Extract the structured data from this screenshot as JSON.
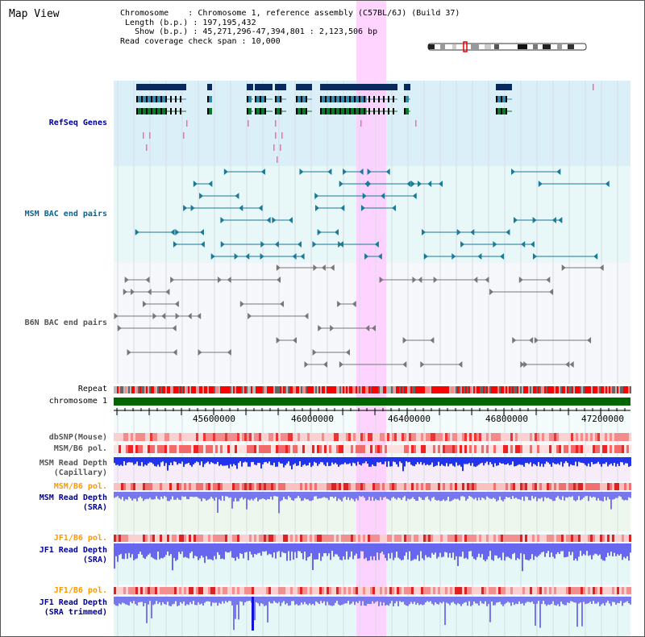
{
  "title": "Map View",
  "info": {
    "chromosome_label": "Chromosome",
    "chromosome_value": "Chromosome 1, reference assembly (C57BL/6J) (Build 37)",
    "length_label": "Length (b.p.)",
    "length_value": "197,195,432",
    "show_label": "Show (b.p.)",
    "show_value": "45,271,296-47,394,801 : 2,123,506 bp",
    "coverage_label": "Read coverage check span",
    "coverage_value": "10,000"
  },
  "tracks": {
    "refseq": "RefSeq Genes",
    "msm_bac": "MSM BAC end pairs",
    "b6n_bac": "B6N BAC end pairs",
    "repeat": "Repeat",
    "chromosome": "chromosome 1",
    "dbsnp": "dbSNP(Mouse)",
    "msm_b6_pol": "MSM/B6 pol.",
    "msm_depth_cap_1": "MSM Read Depth",
    "msm_depth_cap_2": "(Capillary)",
    "msm_b6_pol_sra": "MSM/B6 pol.",
    "msm_depth_sra_1": "MSM Read Depth",
    "msm_depth_sra_2": "(SRA)",
    "jf1_b6_pol": "JF1/B6 pol.",
    "jf1_depth_sra_1": "JF1 Read Depth",
    "jf1_depth_sra_2": "(SRA)",
    "jf1_b6_pol_trim": "JF1/B6 pol.",
    "jf1_depth_trim_1": "JF1 Read Depth",
    "jf1_depth_trim_2": "(SRA trimmed)"
  },
  "axis": {
    "ticks": [
      "45600000",
      "46000000",
      "46400000",
      "46800000",
      "47200000"
    ]
  },
  "colors": {
    "refseq_label": "#000099",
    "msm_bac_label": "#006699",
    "b6n_bac_label": "#555555",
    "pol_label_orange": "#ff9900",
    "depth_label_blue": "#000099",
    "highlight": "#ffccff",
    "chromosome_bar": "#006600"
  }
}
